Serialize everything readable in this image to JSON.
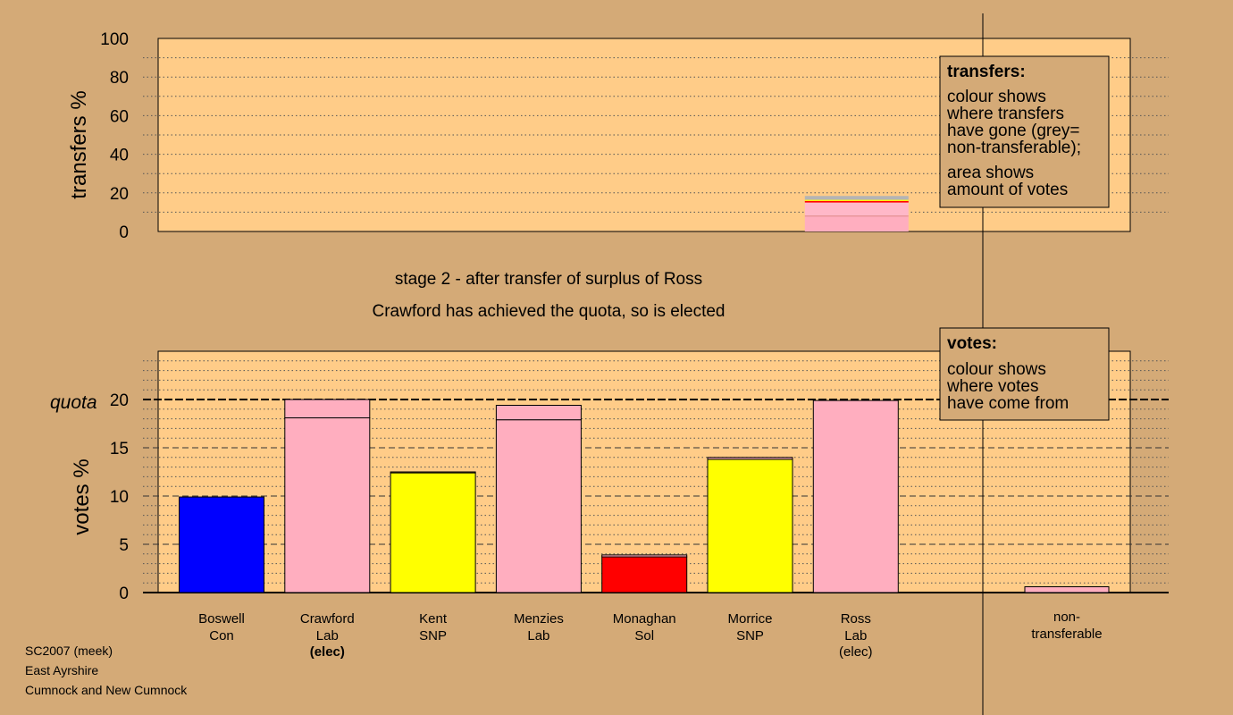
{
  "colors": {
    "background": "#d4aa77",
    "plot_fill": "#ffcc88",
    "legend_fill": "#d4aa77",
    "Con": "#0000ff",
    "Lab": "#ffaebf",
    "SNP": "#ffff00",
    "Sol": "#ff0000",
    "non_transferable": "#b4b4b4",
    "Lab_light": "#ffb8c8"
  },
  "stage_title": "stage 2 - after transfer of surplus of Ross",
  "stage_subtitle": "Crawford has achieved the quota, so is elected",
  "transfers_legend": {
    "heading": "transfers:",
    "lines1": [
      "colour shows",
      "where transfers",
      "have gone (grey=",
      "non-transferable);"
    ],
    "lines2": [
      "area shows",
      "amount of votes"
    ]
  },
  "votes_legend": {
    "heading": "votes:",
    "lines": [
      "colour shows",
      "where votes",
      "have come from"
    ]
  },
  "footer": [
    "SC2007 (meek)",
    "East Ayrshire",
    "Cumnock and New Cumnock"
  ],
  "chart_data": [
    {
      "type": "bar",
      "name": "transfers",
      "ylabel": "transfers %",
      "ylim": [
        0,
        100
      ],
      "yticks": [
        0,
        20,
        40,
        60,
        80,
        100
      ],
      "grid": true,
      "source_candidate": "Ross",
      "stack": [
        {
          "party": "Lab",
          "value": 8,
          "color": "#ffaebf"
        },
        {
          "party": "Lab",
          "value": 7,
          "color": "#ffb8c8"
        },
        {
          "party": "Sol",
          "value": 0.8,
          "color": "#ff0000"
        },
        {
          "party": "SNP",
          "value": 0.6,
          "color": "#ffff00"
        },
        {
          "party": "non-transferable",
          "value": 2,
          "color": "#b4b4b4"
        }
      ]
    },
    {
      "type": "bar",
      "name": "votes",
      "ylabel": "votes %",
      "ylim": [
        0,
        25
      ],
      "yticks": [
        0,
        5,
        10,
        15,
        20
      ],
      "quota": 20,
      "quota_label": "quota",
      "grid": true,
      "candidates": [
        {
          "name": "Boswell",
          "party": "Con",
          "status": "",
          "segments": [
            {
              "value": 9.9,
              "color": "#0000ff"
            }
          ]
        },
        {
          "name": "Crawford",
          "party": "Lab",
          "status": "(elec)",
          "status_bold": true,
          "segments": [
            {
              "value": 18.1,
              "color": "#ffaebf"
            },
            {
              "value": 1.9,
              "color": "#ffaebf"
            }
          ]
        },
        {
          "name": "Kent",
          "party": "SNP",
          "status": "",
          "segments": [
            {
              "value": 12.4,
              "color": "#ffff00"
            },
            {
              "value": 0.1,
              "color": "#ffaebf"
            }
          ]
        },
        {
          "name": "Menzies",
          "party": "Lab",
          "status": "",
          "segments": [
            {
              "value": 17.9,
              "color": "#ffaebf"
            },
            {
              "value": 1.5,
              "color": "#ffaebf"
            }
          ]
        },
        {
          "name": "Monaghan",
          "party": "Sol",
          "status": "",
          "segments": [
            {
              "value": 3.7,
              "color": "#ff0000"
            },
            {
              "value": 0.2,
              "color": "#ffaebf"
            }
          ]
        },
        {
          "name": "Morrice",
          "party": "SNP",
          "status": "",
          "segments": [
            {
              "value": 13.8,
              "color": "#ffff00"
            },
            {
              "value": 0.2,
              "color": "#ffaebf"
            }
          ]
        },
        {
          "name": "Ross",
          "party": "Lab",
          "status": "(elec)",
          "status_bold": false,
          "segments": [
            {
              "value": 19.9,
              "color": "#ffaebf"
            }
          ]
        }
      ],
      "non_transferable": {
        "label_lines": [
          "non-",
          "transferable"
        ],
        "value": 0.6,
        "color": "#ffaebf"
      }
    }
  ]
}
